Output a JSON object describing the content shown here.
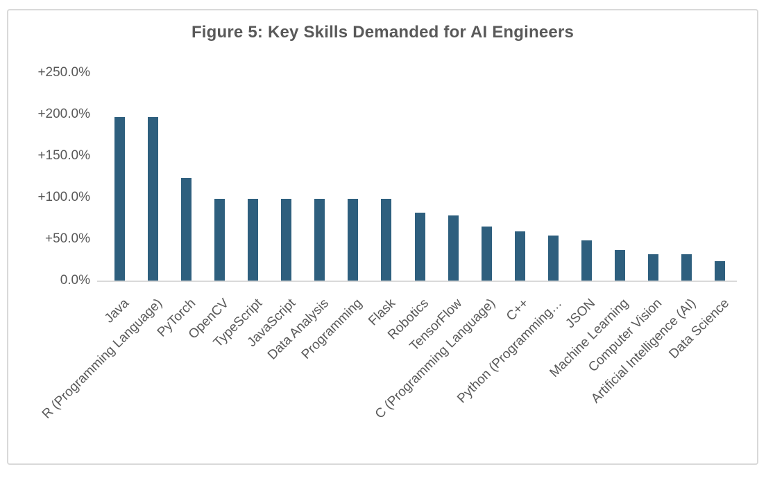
{
  "chart_data": {
    "type": "bar",
    "title": "Figure 5: Key Skills Demanded for AI Engineers",
    "categories": [
      "Java",
      "R (Programming Language)",
      "PyTorch",
      "OpenCV",
      "TypeScript",
      "JavaScript",
      "Data Analysis",
      "Programming",
      "Flask",
      "Robotics",
      "TensorFlow",
      "C (Programming Language)",
      "C++",
      "Python (Programming…",
      "JSON",
      "Machine Learning",
      "Computer Vision",
      "Artificial Intelligence (AI)",
      "Data Science"
    ],
    "values": [
      197,
      197,
      123,
      98,
      98,
      98,
      98,
      98,
      98,
      82,
      78,
      65,
      59,
      54,
      48,
      37,
      32,
      32,
      23
    ],
    "value_unit": "percent growth",
    "xlabel": "",
    "ylabel": "",
    "ylim": [
      0,
      250
    ],
    "y_ticks": [
      {
        "value": 250,
        "label": "+250.0%"
      },
      {
        "value": 200,
        "label": "+200.0%"
      },
      {
        "value": 150,
        "label": "+150.0%"
      },
      {
        "value": 100,
        "label": "+100.0%"
      },
      {
        "value": 50,
        "label": "+50.0%"
      },
      {
        "value": 0,
        "label": "0.0%"
      }
    ],
    "grid": false,
    "legend": false,
    "colors": {
      "bar": "#2E5F7E",
      "axis_line": "#D9D9D9",
      "frame_border": "#D9D9D9",
      "tick_label": "#595959",
      "category_label": "#595959",
      "title": "#595959",
      "background": "#FFFFFF"
    }
  }
}
